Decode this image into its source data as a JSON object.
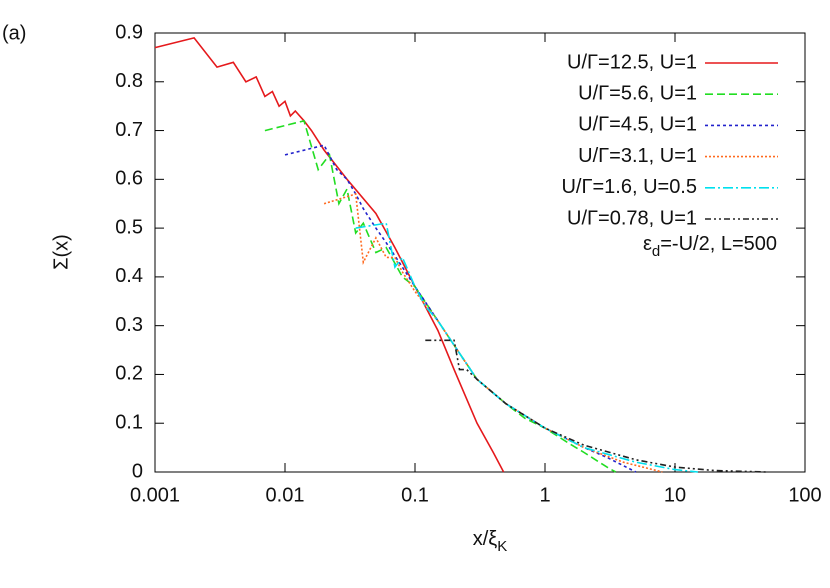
{
  "panel_label": "(a)",
  "chart_data": {
    "type": "line",
    "y_label": "Σ(x)",
    "x_label": {
      "main": "x/ξ",
      "sub": "K"
    },
    "annotation": {
      "symbol": "ε",
      "sub": "d",
      "rest": "=-U/2, L=500"
    },
    "xscale": "log",
    "xlim": [
      0.001,
      100
    ],
    "xticks": [
      0.001,
      0.01,
      0.1,
      1,
      10,
      100
    ],
    "ylim": [
      0,
      0.9
    ],
    "yticks": [
      0,
      0.1,
      0.2,
      0.3,
      0.4,
      0.5,
      0.6,
      0.7,
      0.8,
      0.9
    ],
    "legend": "upper right",
    "series": [
      {
        "name": "U/Γ=12.5, U=1",
        "color": "#e5191c",
        "dash": "none",
        "x": [
          0.001,
          0.002,
          0.003,
          0.004,
          0.005,
          0.006,
          0.007,
          0.008,
          0.009,
          0.01,
          0.011,
          0.012,
          0.014,
          0.016,
          0.02,
          0.03,
          0.05,
          0.07,
          0.1,
          0.15,
          0.2,
          0.3,
          0.4,
          0.48
        ],
        "values": [
          0.87,
          0.89,
          0.83,
          0.84,
          0.8,
          0.81,
          0.77,
          0.78,
          0.75,
          0.76,
          0.73,
          0.74,
          0.72,
          0.7,
          0.66,
          0.6,
          0.53,
          0.46,
          0.38,
          0.29,
          0.21,
          0.1,
          0.04,
          0
        ]
      },
      {
        "name": "U/Γ=5.6, U=1",
        "color": "#22dd22",
        "dash": "8 4",
        "x": [
          0.007,
          0.014,
          0.018,
          0.022,
          0.026,
          0.03,
          0.035,
          0.04,
          0.05,
          0.06,
          0.08,
          0.1,
          0.15,
          0.2,
          0.3,
          0.5,
          0.7,
          1,
          1.5,
          2,
          3,
          3.5
        ],
        "values": [
          0.7,
          0.72,
          0.62,
          0.65,
          0.55,
          0.58,
          0.49,
          0.51,
          0.45,
          0.46,
          0.4,
          0.38,
          0.31,
          0.26,
          0.19,
          0.14,
          0.11,
          0.09,
          0.06,
          0.04,
          0.01,
          0
        ]
      },
      {
        "name": "U/Γ=4.5, U=1",
        "color": "#2222cc",
        "dash": "3 3",
        "x": [
          0.01,
          0.02,
          0.025,
          0.03,
          0.035,
          0.04,
          0.05,
          0.06,
          0.08,
          0.1,
          0.15,
          0.2,
          0.3,
          0.5,
          1,
          2,
          3,
          5
        ],
        "values": [
          0.65,
          0.67,
          0.62,
          0.6,
          0.57,
          0.54,
          0.5,
          0.47,
          0.42,
          0.38,
          0.31,
          0.26,
          0.19,
          0.14,
          0.09,
          0.05,
          0.03,
          0
        ]
      },
      {
        "name": "U/Γ=3.1, U=1",
        "color": "#ff6a1f",
        "dash": "2 2",
        "x": [
          0.02,
          0.035,
          0.04,
          0.05,
          0.06,
          0.07,
          0.08,
          0.1,
          0.15,
          0.2,
          0.3,
          0.5,
          1,
          2,
          4,
          8
        ],
        "values": [
          0.55,
          0.57,
          0.43,
          0.48,
          0.44,
          0.44,
          0.41,
          0.37,
          0.31,
          0.26,
          0.19,
          0.14,
          0.09,
          0.05,
          0.02,
          0
        ]
      },
      {
        "name": "U/Γ=1.6, U=0.5",
        "color": "#00e0ee",
        "dash": "10 3 2 3",
        "x": [
          0.035,
          0.06,
          0.07,
          0.08,
          0.1,
          0.12,
          0.15,
          0.2,
          0.3,
          0.5,
          1,
          2,
          5,
          10,
          15
        ],
        "values": [
          0.5,
          0.51,
          0.42,
          0.44,
          0.38,
          0.34,
          0.31,
          0.26,
          0.19,
          0.14,
          0.09,
          0.05,
          0.02,
          0.005,
          0
        ]
      },
      {
        "name": "U/Γ=0.78, U=1",
        "color": "#222222",
        "dash": "6 3 2 3 2 3",
        "x": [
          0.12,
          0.2,
          0.22,
          0.25,
          0.3,
          0.5,
          1,
          2,
          5,
          10,
          20,
          50
        ],
        "values": [
          0.27,
          0.27,
          0.21,
          0.21,
          0.19,
          0.14,
          0.09,
          0.055,
          0.025,
          0.01,
          0.003,
          0
        ]
      }
    ]
  }
}
